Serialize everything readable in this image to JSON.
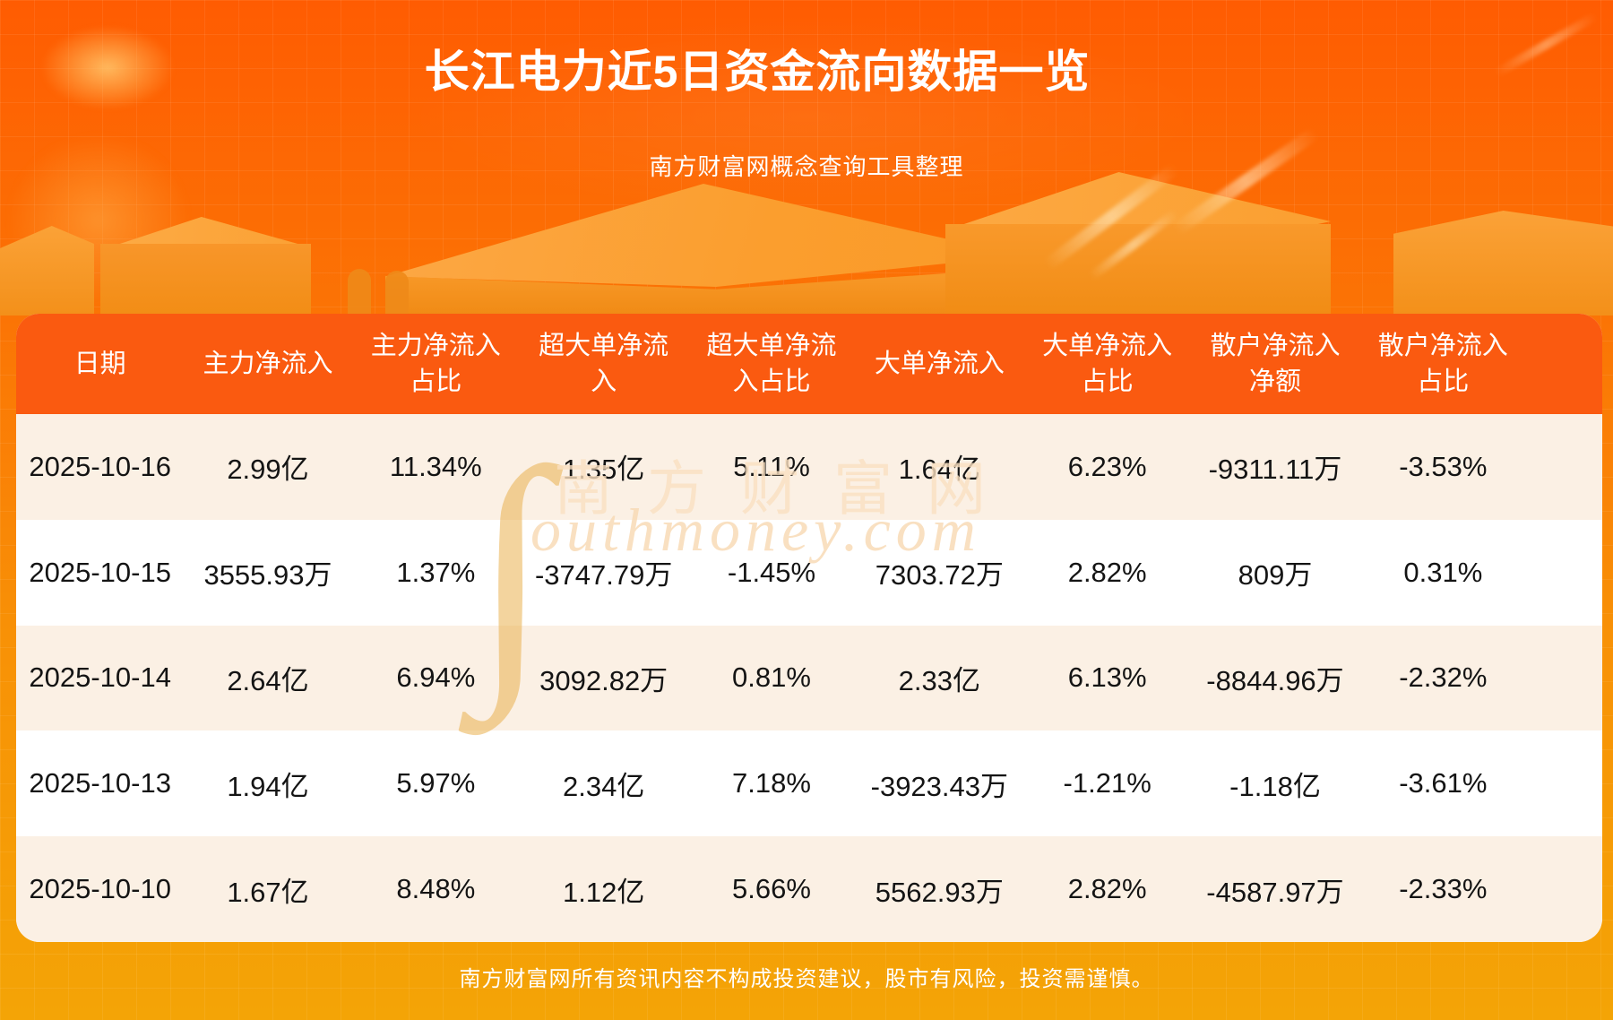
{
  "page": {
    "title": "长江电力近5日资金流向数据一览",
    "subtitle": "南方财富网概念查询工具整理",
    "disclaimer": "南方财富网所有资讯内容不构成投资建议，股市有风险，投资需谨慎。"
  },
  "watermark": {
    "brand": "南方财富网",
    "swirl": "∫",
    "script": "outhmoney.com"
  },
  "colors": {
    "background_top": "#ff5c02",
    "background_bottom": "#f4a406",
    "table_header_bg": "#fa5a10",
    "row_odd_bg": "#fbf0e4",
    "row_even_bg": "#ffffff",
    "header_text": "#ffffff",
    "cell_text": "#141414"
  },
  "chart_data": {
    "type": "table",
    "title": "长江电力近5日资金流向数据一览",
    "columns": [
      "日期",
      "主力净流入",
      "主力净流入占比",
      "超大单净流入",
      "超大单净流入占比",
      "大单净流入",
      "大单净流入占比",
      "散户净流入净额",
      "散户净流入占比"
    ],
    "rows": [
      [
        "2025-10-16",
        "2.99亿",
        "11.34%",
        "1.35亿",
        "5.11%",
        "1.64亿",
        "6.23%",
        "-9311.11万",
        "-3.53%"
      ],
      [
        "2025-10-15",
        "3555.93万",
        "1.37%",
        "-3747.79万",
        "-1.45%",
        "7303.72万",
        "2.82%",
        "809万",
        "0.31%"
      ],
      [
        "2025-10-14",
        "2.64亿",
        "6.94%",
        "3092.82万",
        "0.81%",
        "2.33亿",
        "6.13%",
        "-8844.96万",
        "-2.32%"
      ],
      [
        "2025-10-13",
        "1.94亿",
        "5.97%",
        "2.34亿",
        "7.18%",
        "-3923.43万",
        "-1.21%",
        "-1.18亿",
        "-3.61%"
      ],
      [
        "2025-10-10",
        "1.67亿",
        "8.48%",
        "1.12亿",
        "5.66%",
        "5562.93万",
        "2.82%",
        "-4587.97万",
        "-2.33%"
      ]
    ]
  }
}
